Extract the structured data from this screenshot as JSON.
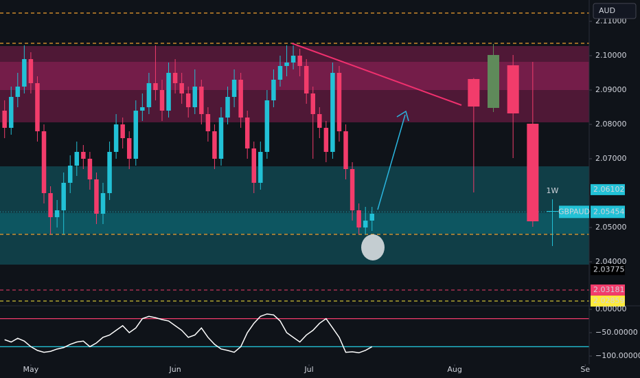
{
  "chart_data": {
    "type": "candlestick",
    "currency": "AUD",
    "up_color": "#22c1d6",
    "down_color": "#f23c6b",
    "x": [
      0,
      1,
      2,
      3,
      4,
      5,
      6,
      7,
      8,
      9,
      10,
      11,
      12,
      13,
      14,
      15,
      16,
      17,
      18,
      19,
      20,
      21,
      22,
      23,
      24,
      25,
      26,
      27,
      28,
      29,
      30,
      31,
      32,
      33,
      34,
      35,
      36,
      37,
      38,
      39,
      40,
      41,
      42,
      43,
      44,
      45,
      46,
      47,
      48,
      49,
      50,
      51,
      52,
      53,
      54,
      55,
      56
    ],
    "open": [
      2.084,
      2.079,
      2.088,
      2.091,
      2.099,
      2.092,
      2.078,
      2.06,
      2.053,
      2.055,
      2.063,
      2.068,
      2.072,
      2.07,
      2.064,
      2.054,
      2.06,
      2.072,
      2.08,
      2.076,
      2.07,
      2.084,
      2.085,
      2.092,
      2.09,
      2.084,
      2.095,
      2.092,
      2.089,
      2.085,
      2.091,
      2.083,
      2.078,
      2.07,
      2.082,
      2.088,
      2.093,
      2.082,
      2.073,
      2.063,
      2.072,
      2.087,
      2.093,
      2.097,
      2.098,
      2.1,
      2.097,
      2.089,
      2.083,
      2.079,
      2.072,
      2.095,
      2.078,
      2.067,
      2.055,
      2.05,
      2.052
    ],
    "high": [
      2.087,
      2.091,
      2.095,
      2.103,
      2.101,
      2.094,
      2.08,
      2.062,
      2.058,
      2.066,
      2.071,
      2.075,
      2.074,
      2.072,
      2.066,
      2.063,
      2.075,
      2.083,
      2.082,
      2.078,
      2.087,
      2.089,
      2.095,
      2.103,
      2.093,
      2.098,
      2.099,
      2.095,
      2.091,
      2.096,
      2.093,
      2.085,
      2.08,
      2.085,
      2.091,
      2.096,
      2.095,
      2.084,
      2.075,
      2.075,
      2.09,
      2.096,
      2.1,
      2.103,
      2.103,
      2.102,
      2.099,
      2.091,
      2.085,
      2.081,
      2.098,
      2.097,
      2.08,
      2.069,
      2.057,
      2.056,
      2.056
    ],
    "low": [
      2.076,
      2.077,
      2.085,
      2.089,
      2.089,
      2.075,
      2.057,
      2.048,
      2.05,
      2.048,
      2.06,
      2.065,
      2.067,
      2.061,
      2.051,
      2.051,
      2.058,
      2.07,
      2.073,
      2.067,
      2.068,
      2.081,
      2.083,
      2.087,
      2.081,
      2.082,
      2.089,
      2.086,
      2.082,
      2.083,
      2.08,
      2.075,
      2.067,
      2.068,
      2.08,
      2.085,
      2.079,
      2.07,
      2.06,
      2.061,
      2.07,
      2.085,
      2.091,
      2.094,
      2.096,
      2.094,
      2.086,
      2.07,
      2.076,
      2.069,
      2.07,
      2.075,
      2.064,
      2.052,
      2.048,
      2.048,
      2.049
    ],
    "close": [
      2.079,
      2.088,
      2.091,
      2.099,
      2.092,
      2.078,
      2.06,
      2.053,
      2.055,
      2.063,
      2.068,
      2.072,
      2.07,
      2.064,
      2.054,
      2.06,
      2.072,
      2.08,
      2.076,
      2.07,
      2.084,
      2.085,
      2.092,
      2.09,
      2.084,
      2.095,
      2.092,
      2.089,
      2.085,
      2.091,
      2.083,
      2.078,
      2.07,
      2.082,
      2.088,
      2.093,
      2.082,
      2.073,
      2.063,
      2.072,
      2.087,
      2.093,
      2.097,
      2.098,
      2.1,
      2.097,
      2.089,
      2.083,
      2.079,
      2.072,
      2.095,
      2.078,
      2.067,
      2.055,
      2.05,
      2.052,
      2.054
    ],
    "weekly": {
      "label": "1W",
      "x": [
        71.5,
        74.5,
        77.5,
        80.5,
        83.5
      ],
      "open": [
        2.0932,
        2.0848,
        2.0972,
        2.0802,
        2.0548
      ],
      "high": [
        2.0935,
        2.1034,
        2.1002,
        2.0982,
        2.0582
      ],
      "low": [
        2.0602,
        2.0836,
        2.0702,
        2.0502,
        2.0446
      ],
      "close": [
        2.0852,
        2.1002,
        2.0832,
        2.0518,
        2.05454
      ],
      "colors": [
        "#f23c6b",
        "#5f8a5a",
        "#f23c6b",
        "#f23c6b",
        "#22c1d6"
      ]
    },
    "xlim": [
      -0.7,
      89.1
    ],
    "xticks": [
      {
        "value": 4,
        "label": "May"
      },
      {
        "value": 26,
        "label": "Jun"
      },
      {
        "value": 46.4,
        "label": "Jul"
      },
      {
        "value": 68.6,
        "label": "Aug"
      },
      {
        "value": 88.5,
        "label": "Se"
      }
    ],
    "ylim": [
      2.0272,
      2.1162
    ],
    "yticks": [
      {
        "value": 2.11,
        "label": "2.11000"
      },
      {
        "value": 2.1,
        "label": "2.10000"
      },
      {
        "value": 2.09,
        "label": "2.09000"
      },
      {
        "value": 2.08,
        "label": "2.08000"
      },
      {
        "value": 2.07,
        "label": "2.07000"
      },
      {
        "value": 2.05,
        "label": "2.05000"
      },
      {
        "value": 2.04,
        "label": "2.04000"
      }
    ],
    "zones": [
      {
        "from": 2.0806,
        "to": 2.1028,
        "color": "#5a1a3c"
      },
      {
        "from": 2.09,
        "to": 2.0982,
        "color": "#7a1f4c"
      },
      {
        "from": 2.0392,
        "to": 2.0678,
        "color": "#114650"
      },
      {
        "from": 2.0482,
        "to": 2.0542,
        "color": "#0d5a66"
      }
    ],
    "levels": [
      {
        "value": 2.1124,
        "color": "#f0a030"
      },
      {
        "value": 2.1036,
        "color": "#f0a030"
      },
      {
        "value": 2.048,
        "color": "#f0a030"
      }
    ],
    "price_labels": [
      {
        "value": 2.06102,
        "label": "2.06102",
        "bg": "#22c1d6",
        "fg": "#0f1319",
        "line": false
      },
      {
        "value": 2.03775,
        "label": "2.03775",
        "bg": "#000000",
        "fg": "#ffffff",
        "line": false
      },
      {
        "value": 2.03181,
        "label": "2.03181",
        "bg": "#f23c6b",
        "fg": "#ffffff",
        "line": true
      },
      {
        "value": 2.02859,
        "label": "2.02859",
        "bg": "#ffeb3b",
        "fg": "#0f1319",
        "line": true
      }
    ],
    "symbol": {
      "name": "GBPAUD",
      "value": 2.05454,
      "label": "2.05454",
      "color": "#22c1d6"
    },
    "oscillator": {
      "ylim": [
        -117.6,
        7.4
      ],
      "yticks": [
        {
          "value": 0,
          "label": "0.00000"
        },
        {
          "value": -50,
          "label": "−50.00000"
        },
        {
          "value": -100,
          "label": "−100.00000"
        }
      ],
      "levels": [
        {
          "value": -20,
          "color": "#f23c6b"
        },
        {
          "value": -80,
          "color": "#22c1d6"
        }
      ],
      "values": [
        -65,
        -70,
        -62,
        -68,
        -80,
        -88,
        -92,
        -90,
        -85,
        -82,
        -75,
        -70,
        -68,
        -80,
        -72,
        -60,
        -55,
        -45,
        -35,
        -50,
        -40,
        -20,
        -15,
        -18,
        -22,
        -25,
        -35,
        -45,
        -60,
        -55,
        -40,
        -60,
        -75,
        -85,
        -88,
        -92,
        -80,
        -50,
        -30,
        -15,
        -10,
        -12,
        -25,
        -50,
        -60,
        -70,
        -55,
        -45,
        -30,
        -20,
        -40,
        -60,
        -92,
        -91,
        -93,
        -88,
        -80
      ],
      "color": "#ffffff"
    }
  }
}
